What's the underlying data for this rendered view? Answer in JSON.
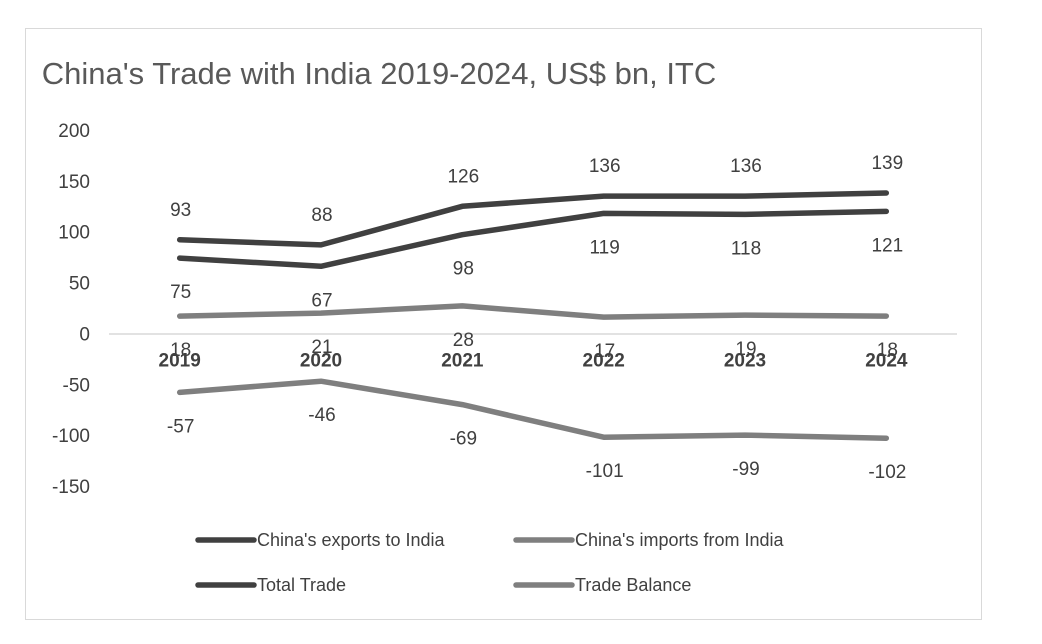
{
  "chart_data": {
    "type": "line",
    "title": "China's Trade with India 2019-2024, US$ bn, ITC",
    "categories": [
      "2019",
      "2020",
      "2021",
      "2022",
      "2023",
      "2024"
    ],
    "y_ticks": [
      "200",
      "150",
      "100",
      "50",
      "0",
      "-50",
      "-100",
      "-150"
    ],
    "ylim": [
      -150,
      200
    ],
    "series": [
      {
        "name": "China's exports to India",
        "values": [
          75,
          67,
          98,
          119,
          118,
          121
        ],
        "labels": [
          "75",
          "67",
          "98",
          "119",
          "118",
          "121"
        ],
        "color": "#404040",
        "label_position": "below"
      },
      {
        "name": "China's imports from India",
        "values": [
          18,
          21,
          28,
          17,
          19,
          18
        ],
        "labels": [
          "18",
          "21",
          "28",
          "17",
          "19",
          "18"
        ],
        "color": "#7f7f7f",
        "label_position": "below"
      },
      {
        "name": "Total Trade",
        "values": [
          93,
          88,
          126,
          136,
          136,
          139
        ],
        "labels": [
          "93",
          "88",
          "126",
          "136",
          "136",
          "139"
        ],
        "color": "#404040",
        "label_position": "above"
      },
      {
        "name": "Trade Balance",
        "values": [
          -57,
          -46,
          -69,
          -101,
          -99,
          -102
        ],
        "labels": [
          "-57",
          "-46",
          "-69",
          "-101",
          "-99",
          "-102"
        ],
        "color": "#7f7f7f",
        "label_position": "below"
      }
    ],
    "legend": "bottom",
    "grid": false
  }
}
